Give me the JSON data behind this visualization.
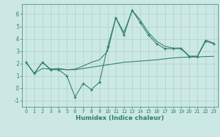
{
  "xlabel": "Humidex (Indice chaleur)",
  "x_values": [
    0,
    1,
    2,
    3,
    4,
    5,
    6,
    7,
    8,
    9,
    10,
    11,
    12,
    13,
    14,
    15,
    16,
    17,
    18,
    19,
    20,
    21,
    22,
    23
  ],
  "y_main": [
    2.1,
    1.2,
    2.1,
    1.5,
    1.5,
    1.0,
    -0.7,
    0.4,
    -0.1,
    0.5,
    3.35,
    5.7,
    4.3,
    6.3,
    5.3,
    4.3,
    3.6,
    3.2,
    3.2,
    3.2,
    2.55,
    2.55,
    3.8,
    3.6
  ],
  "y_low": [
    2.1,
    1.2,
    1.6,
    1.55,
    1.55,
    1.5,
    1.5,
    1.6,
    1.7,
    1.8,
    1.9,
    2.0,
    2.1,
    2.15,
    2.2,
    2.25,
    2.3,
    2.38,
    2.45,
    2.5,
    2.52,
    2.54,
    2.56,
    2.58
  ],
  "y_high": [
    2.1,
    1.2,
    2.1,
    1.55,
    1.6,
    1.5,
    1.55,
    1.8,
    2.1,
    2.3,
    3.0,
    5.7,
    4.5,
    6.3,
    5.5,
    4.5,
    3.8,
    3.4,
    3.25,
    3.25,
    2.6,
    2.6,
    3.9,
    3.65
  ],
  "line_color": "#2e7d6e",
  "bg_color": "#cce8e4",
  "grid_color": "#aacfcc",
  "ylim": [
    -1.5,
    6.8
  ],
  "xlim": [
    -0.5,
    23.5
  ],
  "yticks": [
    -1,
    0,
    1,
    2,
    3,
    4,
    5,
    6
  ],
  "xticks": [
    0,
    1,
    2,
    3,
    4,
    5,
    6,
    7,
    8,
    9,
    10,
    11,
    12,
    13,
    14,
    15,
    16,
    17,
    18,
    19,
    20,
    21,
    22,
    23
  ]
}
